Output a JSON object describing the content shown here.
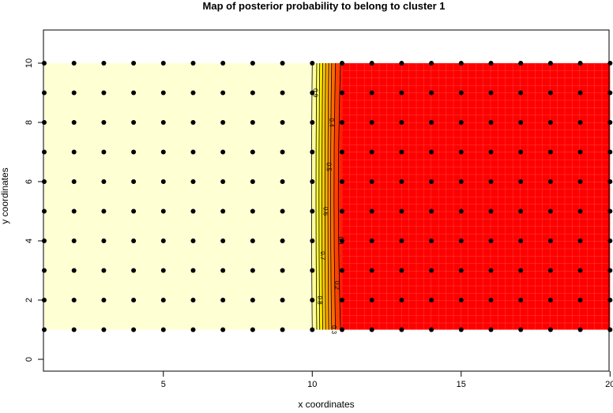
{
  "chart_data": {
    "type": "heatmap",
    "title": "Map of posterior probability to belong to cluster  1",
    "xlabel": "x coordinates",
    "ylabel": "y coordinates",
    "xlim": [
      1,
      20
    ],
    "ylim": [
      0,
      11
    ],
    "xticks": [
      5,
      10,
      15,
      20
    ],
    "yticks": [
      0,
      2,
      4,
      6,
      8,
      10
    ],
    "grid_x": [
      1,
      20
    ],
    "grid_y": [
      1,
      10
    ],
    "points_x": [
      1,
      2,
      3,
      4,
      5,
      6,
      7,
      8,
      9,
      10,
      11,
      12,
      13,
      14,
      15,
      16,
      17,
      18,
      19,
      20
    ],
    "points_y": [
      1,
      2,
      3,
      4,
      5,
      6,
      7,
      8,
      9,
      10
    ],
    "boundary_x": [
      10,
      11
    ],
    "colors": {
      "high": "#FFFFD4",
      "low": "#FF0000",
      "mid": "#FFA500",
      "yellow": "#FFFF00"
    },
    "contours": [
      {
        "level": 0.9,
        "label": "0.9",
        "x": [
          10.0,
          9.95,
          10.0
        ]
      },
      {
        "level": 0.8,
        "label": "0.8",
        "x": [
          10.15,
          10.1,
          10.15
        ]
      },
      {
        "level": 0.7,
        "label": "0.7",
        "x": [
          10.25,
          10.2,
          10.25
        ]
      },
      {
        "level": 0.6,
        "label": "0.6",
        "x": [
          10.35,
          10.3,
          10.35
        ]
      },
      {
        "level": 0.5,
        "label": "0.5",
        "x": [
          10.45,
          10.4,
          10.45
        ]
      },
      {
        "level": 0.4,
        "label": "0.4",
        "x": [
          10.55,
          10.5,
          10.55
        ]
      },
      {
        "level": 0.3,
        "label": "0.3",
        "x": [
          10.65,
          10.58,
          10.65
        ]
      },
      {
        "level": 0.2,
        "label": "0.2",
        "x": [
          10.78,
          10.68,
          10.78
        ]
      },
      {
        "level": 0.1,
        "label": "0.1",
        "x": [
          10.95,
          10.8,
          10.95
        ]
      }
    ]
  }
}
